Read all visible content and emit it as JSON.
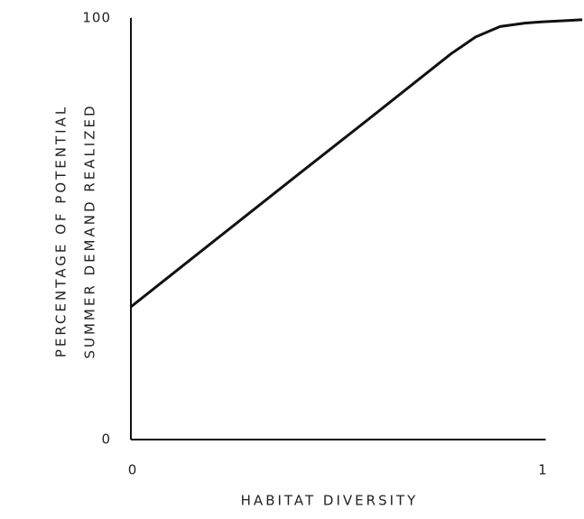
{
  "chart_data": {
    "type": "line",
    "xlabel": "HABITAT DIVERSITY",
    "ylabel": [
      "PERCENTAGE OF POTENTIAL",
      "SUMMER DEMAND REALIZED"
    ],
    "x": [
      0,
      0.2,
      0.4,
      0.6,
      0.78,
      0.84,
      0.9,
      0.96,
      1.0,
      1.1
    ],
    "series": [
      {
        "color": "#111111",
        "values": [
          31.5,
          46.9,
          62.3,
          77.6,
          91.5,
          95.5,
          98,
          98.8,
          99.1,
          99.6
        ]
      }
    ],
    "xlim": [
      0,
      1.1
    ],
    "xticks": [
      0,
      1
    ],
    "ylim": [
      0,
      100
    ],
    "yticks": [
      0,
      100
    ],
    "grid": false
  }
}
